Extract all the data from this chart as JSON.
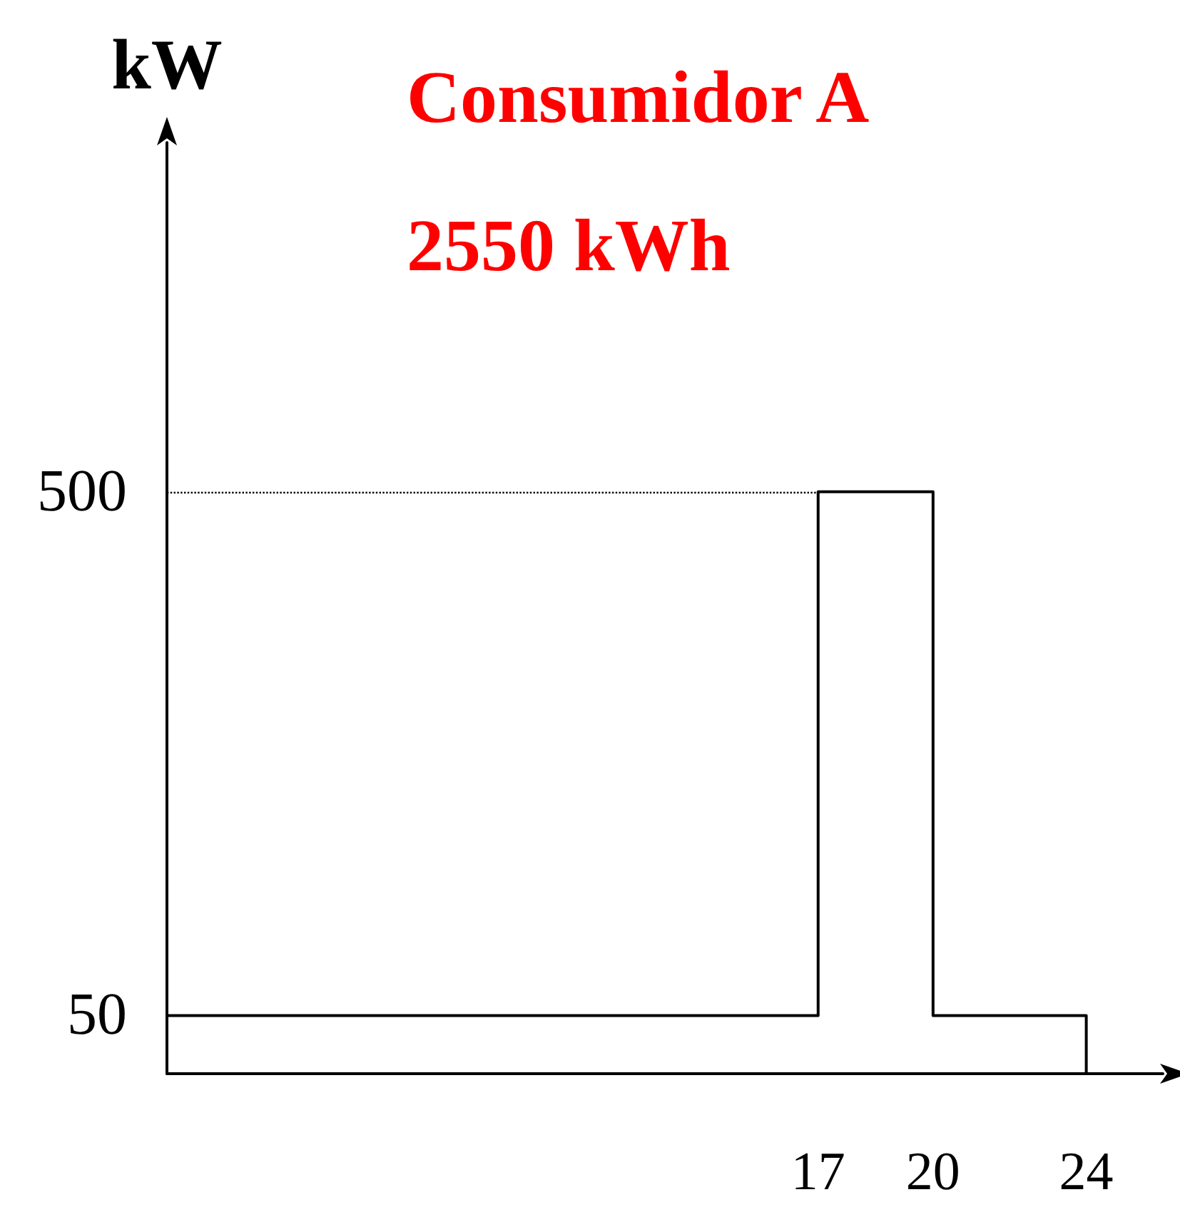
{
  "chart_data": {
    "type": "step",
    "title": "Consumidor A",
    "subtitle": "2550 kWh",
    "ylabel": "kW",
    "x": [
      0,
      17,
      20,
      24
    ],
    "series": [
      {
        "color": "#000000",
        "values": [
          50,
          500,
          50,
          0
        ]
      }
    ],
    "xlim": [
      0,
      26
    ],
    "xticks": [
      17,
      20,
      24
    ],
    "ylim": [
      0,
      800
    ],
    "yticks": [
      50,
      500
    ],
    "ref_lines": [
      {
        "axis": "y",
        "value": 500,
        "line_style": "dotted",
        "color": "#000000"
      }
    ],
    "grid": false,
    "marker": "none",
    "line_style": "solid"
  }
}
